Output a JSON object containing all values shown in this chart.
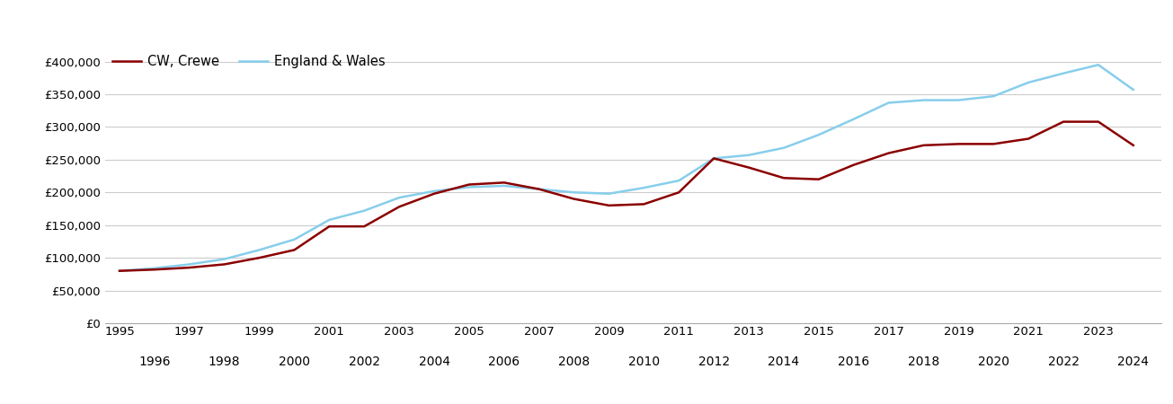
{
  "crewe_years": [
    1995,
    1996,
    1997,
    1998,
    1999,
    2000,
    2001,
    2002,
    2003,
    2004,
    2005,
    2006,
    2007,
    2008,
    2009,
    2010,
    2011,
    2012,
    2013,
    2014,
    2015,
    2016,
    2017,
    2018,
    2019,
    2020,
    2021,
    2022,
    2023,
    2024
  ],
  "crewe_values": [
    80000,
    82000,
    85000,
    90000,
    100000,
    112000,
    148000,
    148000,
    178000,
    198000,
    212000,
    215000,
    205000,
    190000,
    180000,
    182000,
    200000,
    252000,
    238000,
    222000,
    220000,
    242000,
    260000,
    272000,
    274000,
    274000,
    282000,
    308000,
    308000,
    272000
  ],
  "ew_years": [
    1995,
    1996,
    1997,
    1998,
    1999,
    2000,
    2001,
    2002,
    2003,
    2004,
    2005,
    2006,
    2007,
    2008,
    2009,
    2010,
    2011,
    2012,
    2013,
    2014,
    2015,
    2016,
    2017,
    2018,
    2019,
    2020,
    2021,
    2022,
    2023,
    2024
  ],
  "ew_values": [
    80000,
    84000,
    90000,
    98000,
    112000,
    128000,
    158000,
    172000,
    192000,
    202000,
    208000,
    210000,
    205000,
    200000,
    198000,
    207000,
    218000,
    252000,
    257000,
    268000,
    288000,
    312000,
    337000,
    341000,
    341000,
    347000,
    368000,
    382000,
    395000,
    357000
  ],
  "crewe_color": "#8B0000",
  "ew_color": "#87CEEB",
  "crewe_label": "CW, Crewe",
  "ew_label": "England & Wales",
  "ylim": [
    0,
    420000
  ],
  "yticks": [
    0,
    50000,
    100000,
    150000,
    200000,
    250000,
    300000,
    350000,
    400000
  ],
  "ytick_labels": [
    "£0",
    "£50,000",
    "£100,000",
    "£150,000",
    "£200,000",
    "£250,000",
    "£300,000",
    "£350,000",
    "£400,000"
  ],
  "bg_color": "#ffffff",
  "grid_color": "#cccccc",
  "line_width": 1.8,
  "legend_fontsize": 10.5,
  "tick_fontsize": 9.5,
  "xlim_left": 1994.6,
  "xlim_right": 2024.8
}
